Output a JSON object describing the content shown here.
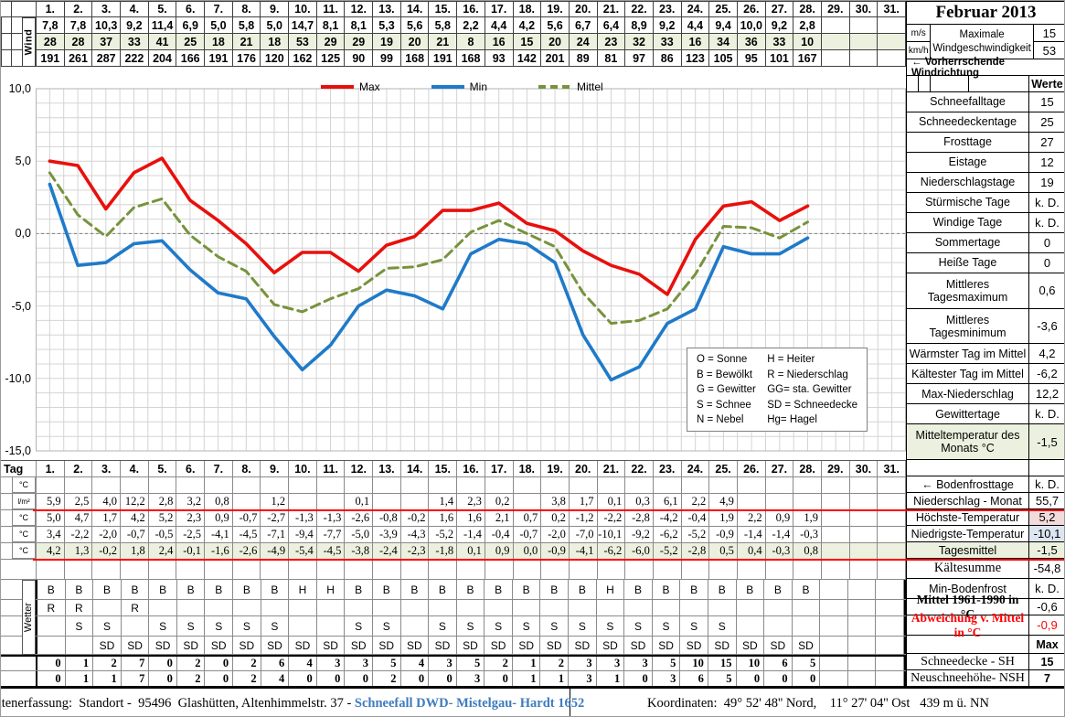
{
  "title": "Februar 2013",
  "colors": {
    "max_line": "#e8100c",
    "min_line": "#1f7ac9",
    "mittel_line": "#77933c",
    "green_bg": "#ebf1de",
    "pink_bg": "#f2dcdb",
    "blue_bg": "#dce6f1",
    "red_accent": "#ff0000",
    "blue_link": "#3e7bbe"
  },
  "top_table": {
    "gutter_label": "Wind",
    "day_headers": [
      "1.",
      "2.",
      "3.",
      "4.",
      "5.",
      "6.",
      "7.",
      "8.",
      "9.",
      "10.",
      "11.",
      "12.",
      "13.",
      "14.",
      "15.",
      "16.",
      "17.",
      "18.",
      "19.",
      "20.",
      "21.",
      "22.",
      "23.",
      "24.",
      "25.",
      "26.",
      "27.",
      "28.",
      "29.",
      "30.",
      "31."
    ],
    "wind_ms": [
      "7,8",
      "7,8",
      "10,3",
      "9,2",
      "11,4",
      "6,9",
      "5,0",
      "5,8",
      "5,0",
      "14,7",
      "8,1",
      "8,1",
      "5,3",
      "5,6",
      "5,8",
      "2,2",
      "4,4",
      "4,2",
      "5,6",
      "6,7",
      "6,4",
      "8,9",
      "9,2",
      "4,4",
      "9,4",
      "10,0",
      "9,2",
      "2,8",
      "",
      "",
      ""
    ],
    "wind_kmh": [
      "28",
      "28",
      "37",
      "33",
      "41",
      "25",
      "18",
      "21",
      "18",
      "53",
      "29",
      "29",
      "19",
      "20",
      "21",
      "8",
      "16",
      "15",
      "20",
      "24",
      "23",
      "32",
      "33",
      "16",
      "34",
      "36",
      "33",
      "10",
      "",
      "",
      ""
    ],
    "wind_dir": [
      "191",
      "261",
      "287",
      "222",
      "204",
      "166",
      "191",
      "176",
      "120",
      "162",
      "125",
      "90",
      "99",
      "168",
      "191",
      "168",
      "93",
      "142",
      "201",
      "89",
      "81",
      "97",
      "86",
      "123",
      "105",
      "95",
      "101",
      "167",
      "",
      "",
      ""
    ]
  },
  "header_right": {
    "month_title": "Februar 2013",
    "unit_ms": "m/s",
    "unit_kmh": "km/h",
    "max_wind_label": "Maximale Windgeschwindigkeit",
    "max_wind_ms": "15",
    "max_wind_kmh": "53",
    "wind_dir_note": "←  Vorherrschende Windrichtung",
    "werte_header": "Werte"
  },
  "chart_data": {
    "type": "line",
    "x_days": [
      1,
      2,
      3,
      4,
      5,
      6,
      7,
      8,
      9,
      10,
      11,
      12,
      13,
      14,
      15,
      16,
      17,
      18,
      19,
      20,
      21,
      22,
      23,
      24,
      25,
      26,
      27,
      28
    ],
    "x_range_days": 31,
    "ylim": [
      -15,
      10
    ],
    "ytick_labels": [
      "10,0",
      "5,0",
      "0,0",
      "-5,0",
      "-10,0",
      "-15,0"
    ],
    "grid": true,
    "legend_position": "top-center",
    "series": [
      {
        "name": "Max",
        "color": "#e8100c",
        "style": "solid",
        "values": [
          5.0,
          4.7,
          1.7,
          4.2,
          5.2,
          2.3,
          0.9,
          -0.7,
          -2.7,
          -1.3,
          -1.3,
          -2.6,
          -0.8,
          -0.2,
          1.6,
          1.6,
          2.1,
          0.7,
          0.2,
          -1.2,
          -2.2,
          -2.8,
          -4.2,
          -0.4,
          1.9,
          2.2,
          0.9,
          1.9
        ]
      },
      {
        "name": "Min",
        "color": "#1f7ac9",
        "style": "solid",
        "values": [
          3.4,
          -2.2,
          -2.0,
          -0.7,
          -0.5,
          -2.5,
          -4.1,
          -4.5,
          -7.1,
          -9.4,
          -7.7,
          -5.0,
          -3.9,
          -4.3,
          -5.2,
          -1.4,
          -0.4,
          -0.7,
          -2.0,
          -7.0,
          -10.1,
          -9.2,
          -6.2,
          -5.2,
          -0.9,
          -1.4,
          -1.4,
          -0.3
        ]
      },
      {
        "name": "Mittel",
        "color": "#77933c",
        "style": "dashed",
        "values": [
          4.2,
          1.3,
          -0.2,
          1.8,
          2.4,
          -0.1,
          -1.6,
          -2.6,
          -4.9,
          -5.4,
          -4.5,
          -3.8,
          -2.4,
          -2.3,
          -1.8,
          0.1,
          0.9,
          0.0,
          -0.9,
          -4.1,
          -6.2,
          -6.0,
          -5.2,
          -2.8,
          0.5,
          0.4,
          -0.3,
          0.8
        ]
      }
    ],
    "codes_legend": {
      "left": [
        "O = Sonne",
        "B = Bewölkt",
        "G = Gewitter",
        "S = Schnee",
        "N = Nebel"
      ],
      "right": [
        "H = Heiter",
        "R = Niederschlag",
        "GG= sta. Gewitter",
        "SD = Schneedecke",
        "Hg= Hagel"
      ]
    }
  },
  "sidebar": {
    "rows": [
      {
        "label": "Schneefalltage",
        "value": "15"
      },
      {
        "label": "Schneedeckentage",
        "value": "25"
      },
      {
        "label": "Frosttage",
        "value": "27"
      },
      {
        "label": "Eistage",
        "value": "12"
      },
      {
        "label": "Niederschlagstage",
        "value": "19"
      },
      {
        "label": "Stürmische Tage",
        "value": "k. D."
      },
      {
        "label": "Windige Tage",
        "value": "k. D."
      },
      {
        "label": "Sommertage",
        "value": "0"
      },
      {
        "label": "Heiße Tage",
        "value": "0"
      },
      {
        "label": "Mittleres Tagesmaximum",
        "value": "0,6",
        "two_line": true
      },
      {
        "label": "Mittleres Tagesminimum",
        "value": "-3,6",
        "two_line": true
      },
      {
        "label": "Wärmster Tag im Mittel",
        "value": "4,2"
      },
      {
        "label": "Kältester Tag im Mittel",
        "value": "-6,2"
      },
      {
        "label": "Max-Niederschlag",
        "value": "12,2"
      },
      {
        "label": "Gewittertage",
        "value": "k. D."
      },
      {
        "label": "Mitteltemperatur des Monats °C",
        "value": "-1,5",
        "green": true,
        "two_line": true
      }
    ]
  },
  "bottom_table": {
    "tag_label": "Tag",
    "wetter_label": "Wetter",
    "row_units": {
      "temp": "°C",
      "precip": "l/m²"
    },
    "empty": [],
    "precipitation": [
      "5,9",
      "2,5",
      "4,0",
      "12,2",
      "2,8",
      "3,2",
      "0,8",
      "",
      "1,2",
      "",
      "",
      "0,1",
      "",
      "",
      "1,4",
      "2,3",
      "0,2",
      "",
      "3,8",
      "1,7",
      "0,1",
      "0,3",
      "6,1",
      "2,2",
      "4,9",
      "",
      "",
      "",
      "",
      "",
      ""
    ],
    "wetter_b": [
      "B",
      "B",
      "B",
      "B",
      "B",
      "B",
      "B",
      "B",
      "B",
      "H",
      "H",
      "B",
      "B",
      "B",
      "B",
      "B",
      "B",
      "B",
      "B",
      "B",
      "H",
      "B",
      "B",
      "B",
      "B",
      "B",
      "B",
      "B",
      "",
      "",
      ""
    ],
    "wetter_r": [
      "R",
      "R",
      "",
      "R",
      "",
      "",
      "",
      "",
      "",
      "",
      "",
      "",
      "",
      "",
      "",
      "",
      "",
      "",
      "",
      "",
      "",
      "",
      "",
      "",
      "",
      "",
      "",
      "",
      "",
      "",
      ""
    ],
    "wetter_s": [
      "",
      "S",
      "S",
      "",
      "S",
      "S",
      "S",
      "S",
      "S",
      "",
      "",
      "S",
      "S",
      "",
      "S",
      "S",
      "S",
      "S",
      "S",
      "S",
      "S",
      "S",
      "S",
      "S",
      "S",
      "",
      "",
      "",
      "",
      "",
      ""
    ],
    "wetter_sd": [
      "",
      "",
      "SD",
      "SD",
      "SD",
      "SD",
      "SD",
      "SD",
      "SD",
      "SD",
      "SD",
      "SD",
      "SD",
      "SD",
      "SD",
      "SD",
      "SD",
      "SD",
      "SD",
      "SD",
      "SD",
      "SD",
      "SD",
      "SD",
      "SD",
      "SD",
      "SD",
      "SD",
      "",
      "",
      ""
    ],
    "schneedecke_sh": [
      "0",
      "1",
      "2",
      "7",
      "0",
      "2",
      "0",
      "2",
      "6",
      "4",
      "3",
      "3",
      "5",
      "4",
      "3",
      "5",
      "2",
      "1",
      "2",
      "3",
      "3",
      "3",
      "5",
      "10",
      "15",
      "10",
      "6",
      "5",
      "",
      "",
      ""
    ],
    "neuschnee_nsh": [
      "0",
      "1",
      "1",
      "7",
      "0",
      "2",
      "0",
      "2",
      "4",
      "0",
      "0",
      "0",
      "2",
      "0",
      "0",
      "3",
      "0",
      "1",
      "1",
      "3",
      "1",
      "0",
      "3",
      "6",
      "5",
      "0",
      "0",
      "0",
      "",
      "",
      ""
    ]
  },
  "bottom_sidebar": {
    "rows": [
      {
        "label": "",
        "value": ""
      },
      {
        "label": "←  Bodenfrosttage",
        "value": "k. D."
      },
      {
        "label": "Niederschlag - Monat",
        "value": "55,7"
      },
      {
        "label": "Höchste-Temperatur",
        "value": "5,2",
        "value_bg": "pink"
      },
      {
        "label": "Niedrigste-Temperatur",
        "value": "-10,1",
        "value_bg": "blue"
      },
      {
        "label": "Tagesmittel",
        "value": "-1,5",
        "green": true
      },
      {
        "label": "Kältesumme",
        "value": "-54,8"
      },
      {
        "label": "Min-Bodenfrost",
        "value": "k. D."
      },
      {
        "label": "Mittel 1961-1990 in °C",
        "value": "-0,6",
        "bold": true
      },
      {
        "label": "Abweichung v. Mittel in °C",
        "value": "-0,9",
        "red": true,
        "bold": true
      },
      {
        "label": "",
        "value": "Max",
        "value_bold": true
      },
      {
        "label": "Schneedecke -   SH",
        "value": "15",
        "value_bold": true
      },
      {
        "label": "Neuschneehöhe- NSH",
        "value": "7",
        "value_bold": true
      }
    ]
  },
  "footer": {
    "left_text": "Datenerfassung:  Standort -  95496  Glashütten, Altenhimmelstr. 37 - ",
    "link_text": "Schneefall DWD- Mistelgau- Hardt 1652",
    "right_text": "Koordinaten:  49° 52' 48'' Nord,    11° 27' 04'' Ost   439 m ü. NN"
  }
}
